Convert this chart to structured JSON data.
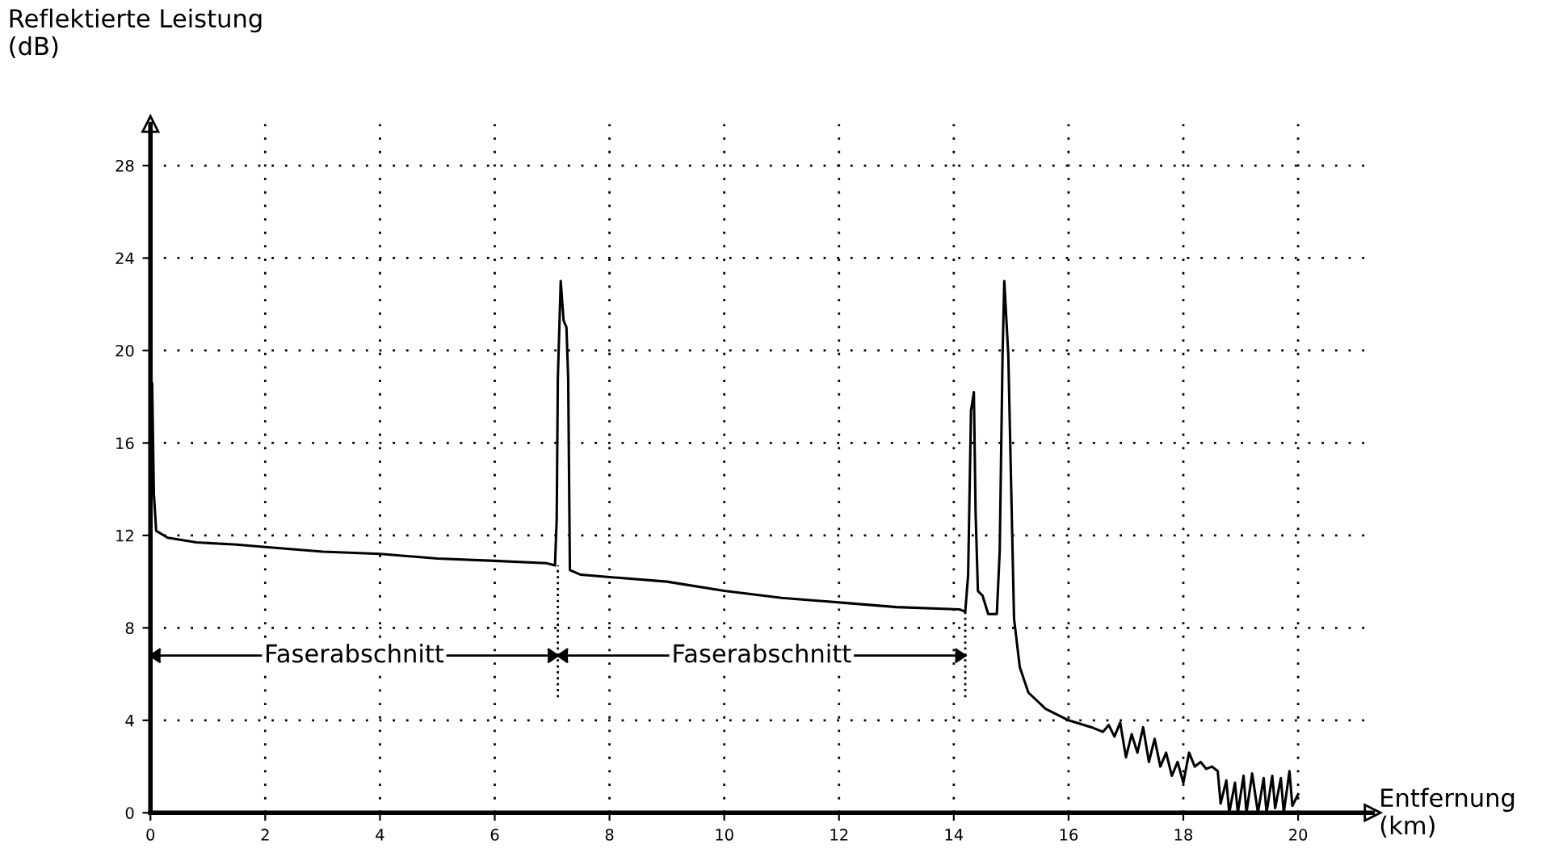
{
  "chart_data": {
    "type": "line",
    "ylabel": "Reflektierte Leistung\n(dB)",
    "xlabel": "Entfernung\n(km)",
    "xlim": [
      0,
      21.3
    ],
    "ylim": [
      0,
      29.8
    ],
    "xticks": [
      0,
      2,
      4,
      6,
      8,
      10,
      12,
      14,
      16,
      18,
      20
    ],
    "yticks": [
      0,
      4,
      8,
      12,
      16,
      20,
      24,
      28
    ],
    "grid": true,
    "marker": "none",
    "line_style": "solid",
    "series": [
      {
        "color": "#000000",
        "x": [
          0,
          0.01,
          0.03,
          0.06,
          0.1,
          0.3,
          0.8,
          1.5,
          2.0,
          3.0,
          4.0,
          5.0,
          6.0,
          6.9,
          7.05,
          7.08,
          7.1,
          7.15,
          7.2,
          7.25,
          7.28,
          7.31,
          7.5,
          8.0,
          9.0,
          10.0,
          11.0,
          12.0,
          13.0,
          14.1,
          14.2,
          14.25,
          14.3,
          14.35,
          14.38,
          14.42,
          14.5,
          14.6,
          14.75,
          14.8,
          14.85,
          14.88,
          14.95,
          15.05,
          15.15,
          15.3,
          15.6,
          16.0,
          16.4,
          16.6,
          16.7,
          16.8,
          16.9,
          17.0,
          17.1,
          17.2,
          17.3,
          17.4,
          17.5,
          17.6,
          17.7,
          17.8,
          17.9,
          18.0,
          18.1,
          18.2,
          18.3,
          18.4,
          18.5,
          18.6,
          18.65,
          18.75,
          18.8,
          18.9,
          18.95,
          19.05,
          19.1,
          19.2,
          19.3,
          19.4,
          19.45,
          19.55,
          19.6,
          19.7,
          19.75,
          19.85,
          19.9,
          20.0
        ],
        "values": [
          0,
          18.6,
          18.6,
          13.8,
          12.2,
          11.9,
          11.7,
          11.6,
          11.5,
          11.3,
          11.2,
          11.0,
          10.9,
          10.8,
          10.7,
          12.7,
          18.8,
          23.0,
          21.3,
          21.0,
          18.8,
          10.5,
          10.3,
          10.2,
          10.0,
          9.6,
          9.3,
          9.1,
          8.9,
          8.8,
          8.7,
          10.3,
          17.4,
          18.2,
          13.0,
          9.6,
          9.4,
          8.6,
          8.6,
          11.3,
          19.8,
          23.0,
          19.8,
          8.4,
          6.3,
          5.2,
          4.5,
          4.0,
          3.7,
          3.5,
          3.8,
          3.3,
          3.9,
          2.4,
          3.4,
          2.6,
          3.7,
          2.2,
          3.2,
          2.0,
          2.6,
          1.6,
          2.2,
          1.3,
          2.6,
          2.0,
          2.2,
          1.9,
          2.0,
          1.8,
          0.4,
          1.4,
          0,
          1.3,
          0,
          1.6,
          0,
          1.7,
          0,
          1.5,
          0,
          1.6,
          0.2,
          1.5,
          0,
          1.8,
          0.3,
          0.8
        ]
      }
    ],
    "ref_lines": [
      {
        "axis": "x",
        "value": 7.1,
        "color": "#000000",
        "line_style": "dotted"
      },
      {
        "axis": "x",
        "value": 14.2,
        "color": "#000000",
        "line_style": "dotted"
      }
    ],
    "annotations": [
      "Faserabschnitt",
      "Faserabschnitt"
    ]
  }
}
